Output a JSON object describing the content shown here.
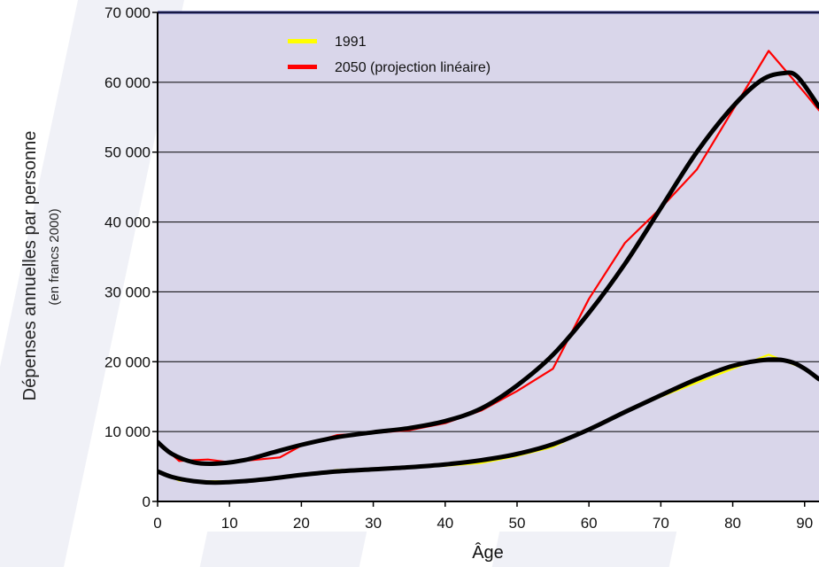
{
  "chart_data": {
    "type": "line",
    "title": "",
    "xlabel": "Âge",
    "ylabel": "Dépenses annuelles par personne",
    "ylabel_sub": "(en francs 2000)",
    "xlim": [
      0,
      92
    ],
    "ylim": [
      0,
      70000
    ],
    "x_ticks": [
      "0",
      "10",
      "20",
      "30",
      "40",
      "50",
      "60",
      "70",
      "80",
      "90"
    ],
    "y_ticks": [
      "0",
      "10 000",
      "20 000",
      "30 000",
      "40 000",
      "50 000",
      "60 000",
      "70 000"
    ],
    "grid": "horizontal",
    "legend": "top-center",
    "plot_background": "#d9d6ea",
    "series": [
      {
        "name": "1991",
        "color": "#ffff00",
        "x": [
          0,
          3,
          7,
          10,
          15,
          20,
          25,
          30,
          35,
          40,
          45,
          50,
          55,
          60,
          65,
          70,
          75,
          80,
          85,
          90,
          92
        ],
        "values": [
          4300,
          3000,
          2900,
          2900,
          3200,
          3800,
          4500,
          4500,
          4800,
          5100,
          5500,
          6500,
          7800,
          10300,
          12800,
          15000,
          17000,
          19000,
          21000,
          19000,
          17500
        ]
      },
      {
        "name": "2050 (projection linéaire)",
        "color": "#ff0000",
        "x": [
          0,
          3,
          7,
          10,
          17,
          20,
          25,
          30,
          35,
          40,
          45,
          50,
          55,
          60,
          65,
          70,
          75,
          80,
          85,
          90,
          92
        ],
        "values": [
          8500,
          5800,
          6000,
          5600,
          6300,
          8000,
          9500,
          9800,
          10200,
          11200,
          13000,
          15800,
          19000,
          29000,
          37000,
          42000,
          47500,
          56000,
          64500,
          58500,
          56000
        ]
      },
      {
        "name": "",
        "color": "#000000",
        "x": [
          0,
          2,
          5,
          8,
          12,
          16,
          20,
          25,
          30,
          35,
          40,
          45,
          50,
          55,
          60,
          65,
          70,
          75,
          80,
          85,
          88,
          90,
          92
        ],
        "values": [
          4300,
          3500,
          2900,
          2700,
          2900,
          3300,
          3800,
          4300,
          4600,
          4900,
          5300,
          5900,
          6800,
          8200,
          10300,
          12800,
          15200,
          17500,
          19400,
          20300,
          20000,
          19000,
          17500
        ]
      },
      {
        "name": "",
        "color": "#000000",
        "x": [
          0,
          2,
          5,
          8,
          12,
          16,
          20,
          25,
          30,
          35,
          40,
          45,
          50,
          55,
          60,
          65,
          70,
          75,
          80,
          84,
          87,
          89,
          92
        ],
        "values": [
          8500,
          6800,
          5600,
          5400,
          5900,
          7000,
          8100,
          9200,
          9900,
          10500,
          11500,
          13300,
          16600,
          21000,
          27000,
          34000,
          42000,
          50000,
          56500,
          60300,
          61300,
          60800,
          56500
        ]
      }
    ]
  }
}
